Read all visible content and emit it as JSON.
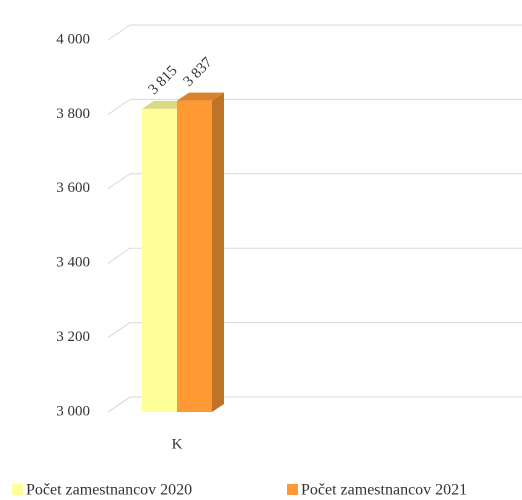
{
  "chart_data": {
    "type": "bar",
    "categories": [
      "K"
    ],
    "series": [
      {
        "name": "Počet zamestnancov 2020",
        "color": "#ffff99",
        "values": [
          3815
        ],
        "value_labels": [
          "3 815"
        ]
      },
      {
        "name": "Počet zamestnancov 2021",
        "color": "#ff9933",
        "values": [
          3837
        ],
        "value_labels": [
          "3 837"
        ]
      }
    ],
    "ylim": [
      3000,
      4000
    ],
    "yticks": [
      {
        "value": 3000,
        "label": "3 000"
      },
      {
        "value": 3200,
        "label": "3 200"
      },
      {
        "value": 3400,
        "label": "3 400"
      },
      {
        "value": 3600,
        "label": "3 600"
      },
      {
        "value": 3800,
        "label": "3 800"
      },
      {
        "value": 4000,
        "label": "4 000"
      }
    ],
    "grid": true,
    "legend": "bottom"
  }
}
